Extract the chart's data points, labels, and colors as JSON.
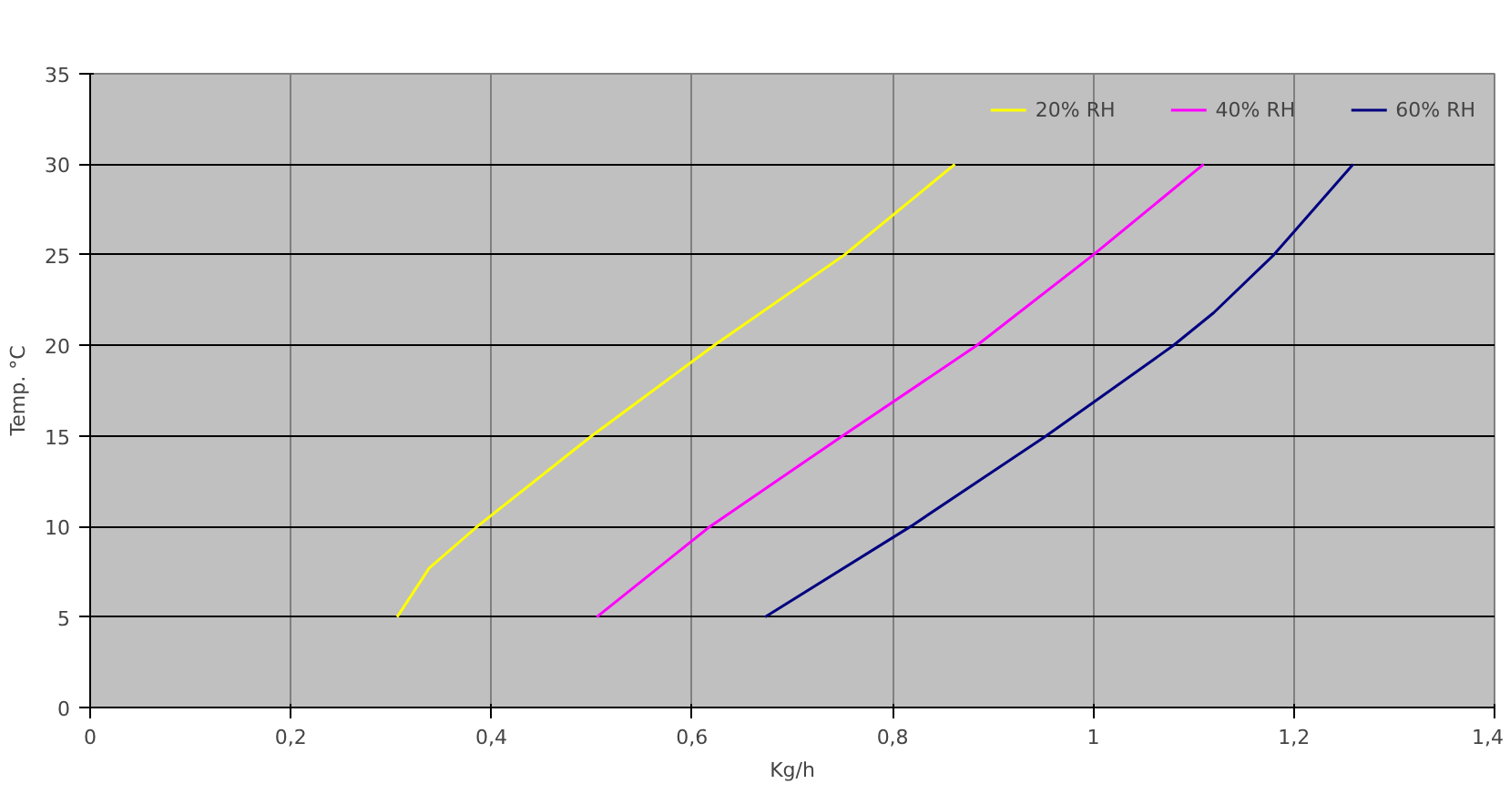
{
  "chart_data": {
    "type": "line",
    "xlabel": "Kg/h",
    "ylabel": "Temp. °C",
    "xlim": [
      0,
      1.4
    ],
    "xticks": [
      {
        "value": 0,
        "label": "0"
      },
      {
        "value": 0.2,
        "label": "0,2"
      },
      {
        "value": 0.4,
        "label": "0,4"
      },
      {
        "value": 0.6,
        "label": "0,6"
      },
      {
        "value": 0.8,
        "label": "0,8"
      },
      {
        "value": 1,
        "label": "1"
      },
      {
        "value": 1.2,
        "label": "1,2"
      },
      {
        "value": 1.4,
        "label": "1,4"
      }
    ],
    "ylim": [
      0,
      35
    ],
    "yticks": [
      0,
      5,
      10,
      15,
      20,
      25,
      30,
      35
    ],
    "grid": true,
    "legend": "top right",
    "marker": "none",
    "line_style": "solid",
    "series": [
      {
        "name": "20% RH",
        "color": "#ffff00",
        "x": [
          0.306,
          0.338,
          0.386,
          0.5,
          0.622,
          0.752,
          0.862
        ],
        "values": [
          5,
          7.7,
          10,
          15,
          20,
          25,
          30
        ]
      },
      {
        "name": "40% RH",
        "color": "#ff00ff",
        "x": [
          0.505,
          0.618,
          0.75,
          0.884,
          1.0,
          1.11
        ],
        "values": [
          5,
          10,
          15,
          20,
          25,
          30
        ]
      },
      {
        "name": "60% RH",
        "color": "#000080",
        "x": [
          0.673,
          0.818,
          0.953,
          1.08,
          1.12,
          1.18,
          1.259
        ],
        "values": [
          5,
          10,
          15,
          20,
          21.8,
          25,
          30
        ]
      }
    ]
  }
}
